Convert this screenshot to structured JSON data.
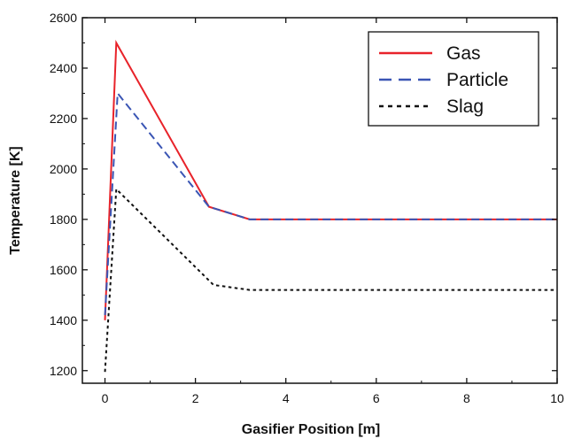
{
  "chart_data": {
    "type": "line",
    "title": "",
    "xlabel": "Gasifier Position [m]",
    "ylabel": "Temperature [K]",
    "xlim": [
      -0.5,
      10
    ],
    "ylim": [
      1150,
      2600
    ],
    "xticks": [
      0,
      2,
      4,
      6,
      8,
      10
    ],
    "yticks": [
      1200,
      1400,
      1600,
      1800,
      2000,
      2200,
      2400,
      2600
    ],
    "xtick_labels": [
      "0",
      "2",
      "4",
      "6",
      "8",
      "10"
    ],
    "ytick_labels": [
      "1200",
      "1400",
      "1600",
      "1800",
      "2000",
      "2200",
      "2400",
      "2600"
    ],
    "grid": false,
    "legend_position": "top-right",
    "series": [
      {
        "name": "Gas",
        "color": "#e8232a",
        "style": "solid",
        "points": [
          [
            0.0,
            1400
          ],
          [
            0.25,
            2500
          ],
          [
            2.3,
            1850
          ],
          [
            3.2,
            1800
          ],
          [
            10.0,
            1800
          ]
        ]
      },
      {
        "name": "Particle",
        "color": "#3a55b4",
        "style": "dashed",
        "points": [
          [
            0.0,
            1420
          ],
          [
            0.28,
            2300
          ],
          [
            2.3,
            1850
          ],
          [
            3.2,
            1800
          ],
          [
            10.0,
            1800
          ]
        ]
      },
      {
        "name": "Slag",
        "color": "#111111",
        "style": "dotted",
        "points": [
          [
            0.0,
            1195
          ],
          [
            0.25,
            1920
          ],
          [
            2.4,
            1540
          ],
          [
            3.2,
            1520
          ],
          [
            10.0,
            1520
          ]
        ]
      }
    ]
  }
}
